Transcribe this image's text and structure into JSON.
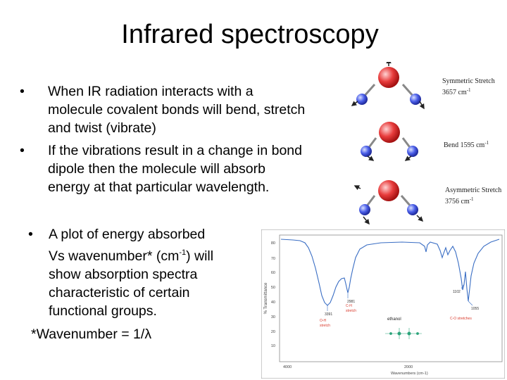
{
  "slide": {
    "title": "Infrared spectroscopy",
    "bullets": [
      {
        "symbol": "•",
        "lines": [
          "When IR radiation interacts with a",
          "molecule covalent bonds will bend, stretch",
          "and twist (vibrate)"
        ]
      },
      {
        "symbol": "•",
        "lines": [
          "If the vibrations result in a change in bond",
          "dipole then the molecule will absorb",
          "energy at that particular wavelength."
        ]
      }
    ],
    "plot_bullet": {
      "symbol": "•",
      "line1": "A plot of energy absorbed",
      "line2_pre": "Vs wavenumber* (cm",
      "line2_sup": "-1",
      "line2_post": ") will",
      "line3": "show absorption spectra",
      "line4": "characteristic of certain",
      "line5": "functional groups."
    },
    "wavenumber_note": "*Wavenumber = 1/λ"
  },
  "vibrations": {
    "symmetric": {
      "title": "Symmetric Stretch",
      "value": "3657 cm",
      "sup": "-1"
    },
    "bend": {
      "title": "Bend",
      "value": "1595 cm",
      "sup": "-1"
    },
    "asymmetric": {
      "title": "Asymmetric Stretch",
      "value": "3756 cm",
      "sup": "-1"
    }
  },
  "spectrum": {
    "ylabel": "% Transmittance",
    "xlabel": "Wavenumbers (cm-1)",
    "compound": "ethanol",
    "x_ticks": [
      "4000",
      "2000"
    ],
    "y_ticks": [
      "80",
      "70",
      "60",
      "50",
      "40",
      "30",
      "20",
      "10"
    ],
    "peaks": [
      {
        "wavenumber": "3391",
        "group_line1": "O-H",
        "group_line2": "stretch"
      },
      {
        "wavenumber": "2981",
        "group_line1": "C-H",
        "group_line2": "stretch"
      },
      {
        "wavenumber": "1102",
        "group_line1": "",
        "group_line2": ""
      },
      {
        "wavenumber": "1055",
        "group_line1": "C-O stretches",
        "group_line2": ""
      }
    ],
    "colors": {
      "trace": "#3a6ec4",
      "annotation": "#d9392b",
      "structure": "#2aa37a"
    }
  }
}
